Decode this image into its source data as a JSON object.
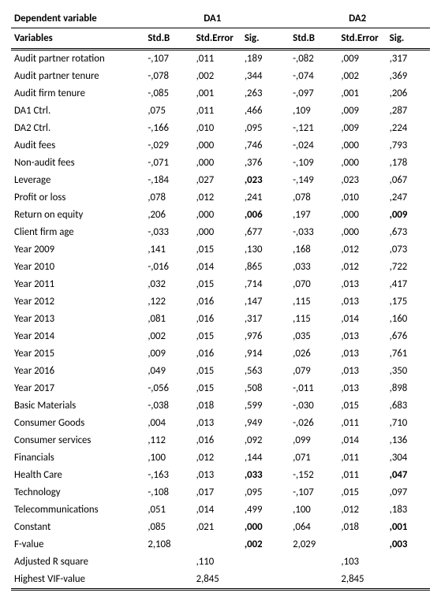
{
  "header": {
    "dep_label": "Dependent variable",
    "group1": "DA1",
    "group2": "DA2",
    "vars_label": "Variables",
    "cols": {
      "stdb": "Std.B",
      "stderr": "Std.Error",
      "sig": "Sig."
    }
  },
  "rows": [
    {
      "label": "Audit partner rotation",
      "a": [
        "-,107",
        ",011",
        ",189"
      ],
      "b": [
        "-,082",
        ",009",
        ",317"
      ]
    },
    {
      "label": "Audit partner tenure",
      "a": [
        "-,078",
        ",002",
        ",344"
      ],
      "b": [
        "-,074",
        ",002",
        ",369"
      ]
    },
    {
      "label": "Audit firm tenure",
      "a": [
        "-,085",
        ",001",
        ",263"
      ],
      "b": [
        "-,097",
        ",001",
        ",206"
      ]
    },
    {
      "label": "DA1 Ctrl.",
      "a": [
        ",075",
        ",011",
        ",466"
      ],
      "b": [
        ",109",
        ",009",
        ",287"
      ]
    },
    {
      "label": "DA2 Ctrl.",
      "a": [
        "-,166",
        ",010",
        ",095"
      ],
      "b": [
        "-,121",
        ",009",
        ",224"
      ]
    },
    {
      "label": "Audit fees",
      "a": [
        "-,029",
        ",000",
        ",746"
      ],
      "b": [
        "-,024",
        ",000",
        ",793"
      ]
    },
    {
      "label": "Non-audit fees",
      "a": [
        "-,071",
        ",000",
        ",376"
      ],
      "b": [
        "-,109",
        ",000",
        ",178"
      ]
    },
    {
      "label": "Leverage",
      "a": [
        "-,184",
        ",027",
        ",023"
      ],
      "b": [
        "-,149",
        ",023",
        ",067"
      ],
      "bold_a": [
        2
      ]
    },
    {
      "label": "Profit or loss",
      "a": [
        ",078",
        ",012",
        ",241"
      ],
      "b": [
        ",078",
        ",010",
        ",247"
      ]
    },
    {
      "label": "Return on equity",
      "a": [
        ",206",
        ",000",
        ",006"
      ],
      "b": [
        ",197",
        ",000",
        ",009"
      ],
      "bold_a": [
        2
      ],
      "bold_b": [
        2
      ]
    },
    {
      "label": "Client firm age",
      "a": [
        "-,033",
        ",000",
        ",677"
      ],
      "b": [
        "-,033",
        ",000",
        ",673"
      ]
    },
    {
      "label": "Year 2009",
      "a": [
        ",141",
        ",015",
        ",130"
      ],
      "b": [
        ",168",
        ",012",
        ",073"
      ]
    },
    {
      "label": "Year 2010",
      "a": [
        "-,016",
        ",014",
        ",865"
      ],
      "b": [
        ",033",
        ",012",
        ",722"
      ]
    },
    {
      "label": "Year 2011",
      "a": [
        ",032",
        ",015",
        ",714"
      ],
      "b": [
        ",070",
        ",013",
        ",417"
      ]
    },
    {
      "label": "Year 2012",
      "a": [
        ",122",
        ",016",
        ",147"
      ],
      "b": [
        ",115",
        ",013",
        ",175"
      ]
    },
    {
      "label": "Year 2013",
      "a": [
        ",081",
        ",016",
        ",317"
      ],
      "b": [
        ",115",
        ",014",
        ",160"
      ]
    },
    {
      "label": "Year 2014",
      "a": [
        ",002",
        ",015",
        ",976"
      ],
      "b": [
        ",035",
        ",013",
        ",676"
      ]
    },
    {
      "label": "Year 2015",
      "a": [
        ",009",
        ",016",
        ",914"
      ],
      "b": [
        ",026",
        ",013",
        ",761"
      ]
    },
    {
      "label": "Year 2016",
      "a": [
        ",049",
        ",015",
        ",563"
      ],
      "b": [
        ",079",
        ",013",
        ",350"
      ]
    },
    {
      "label": "Year 2017",
      "a": [
        "-,056",
        ",015",
        ",508"
      ],
      "b": [
        "-,011",
        ",013",
        ",898"
      ]
    },
    {
      "label": "Basic Materials",
      "a": [
        "-,038",
        ",018",
        ",599"
      ],
      "b": [
        "-,030",
        ",015",
        ",683"
      ]
    },
    {
      "label": "Consumer Goods",
      "a": [
        ",004",
        ",013",
        ",949"
      ],
      "b": [
        "-,026",
        ",011",
        ",710"
      ]
    },
    {
      "label": "Consumer services",
      "a": [
        ",112",
        ",016",
        ",092"
      ],
      "b": [
        ",099",
        ",014",
        ",136"
      ]
    },
    {
      "label": "Financials",
      "a": [
        ",100",
        ",012",
        ",144"
      ],
      "b": [
        ",071",
        ",011",
        ",304"
      ]
    },
    {
      "label": "Health Care",
      "a": [
        "-,163",
        ",013",
        ",033"
      ],
      "b": [
        "-,152",
        ",011",
        ",047"
      ],
      "bold_a": [
        2
      ],
      "bold_b": [
        2
      ]
    },
    {
      "label": "Technology",
      "a": [
        "-,108",
        ",017",
        ",095"
      ],
      "b": [
        "-,107",
        ",015",
        ",097"
      ]
    },
    {
      "label": "Telecommunications",
      "a": [
        ",051",
        ",014",
        ",499"
      ],
      "b": [
        ",100",
        ",012",
        ",183"
      ]
    },
    {
      "label": "Constant",
      "a": [
        ",085",
        ",021",
        ",000"
      ],
      "b": [
        ",064",
        ",018",
        ",001"
      ],
      "bold_a": [
        2
      ],
      "bold_b": [
        2
      ]
    },
    {
      "label": "F-value",
      "a": [
        "2,108",
        "",
        ",002"
      ],
      "b": [
        "2,029",
        "",
        ",003"
      ],
      "bold_a": [
        2
      ],
      "bold_b": [
        2
      ]
    },
    {
      "label": "Adjusted R square",
      "a": [
        "",
        ",110",
        ""
      ],
      "b": [
        "",
        ",103",
        ""
      ]
    },
    {
      "label": "Highest VIF-value",
      "a": [
        "",
        "2,845",
        ""
      ],
      "b": [
        "",
        "2,845",
        ""
      ]
    }
  ]
}
